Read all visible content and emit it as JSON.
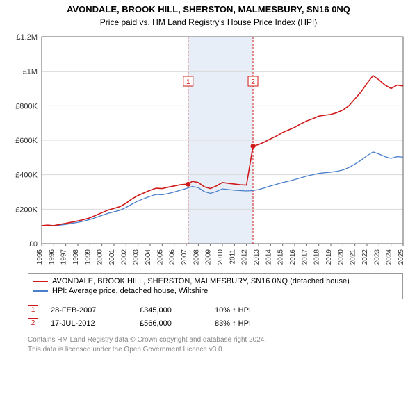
{
  "title": "AVONDALE, BROOK HILL, SHERSTON, MALMESBURY, SN16 0NQ",
  "subtitle": "Price paid vs. HM Land Registry's House Price Index (HPI)",
  "chart": {
    "type": "line",
    "background_color": "#ffffff",
    "grid_color": "#d9d9d9",
    "axis_color": "#666666",
    "shade_color": "#e8eef7",
    "marker_line_color": "#d11919",
    "xlim": [
      1995,
      2025
    ],
    "ylim": [
      0,
      1200000
    ],
    "ytick_step": 200000,
    "yticks": [
      "£0",
      "£200K",
      "£400K",
      "£600K",
      "£800K",
      "£1M",
      "£1.2M"
    ],
    "xticks": [
      1995,
      1996,
      1997,
      1998,
      1999,
      2000,
      2001,
      2002,
      2003,
      2004,
      2005,
      2006,
      2007,
      2008,
      2009,
      2010,
      2011,
      2012,
      2013,
      2014,
      2015,
      2016,
      2017,
      2018,
      2019,
      2020,
      2021,
      2022,
      2023,
      2024,
      2025
    ],
    "series": [
      {
        "name": "property",
        "color": "#d11919",
        "width": 1.6,
        "points": [
          [
            1995,
            105000
          ],
          [
            1995.5,
            108000
          ],
          [
            1996,
            105000
          ],
          [
            1996.5,
            112000
          ],
          [
            1997,
            118000
          ],
          [
            1997.5,
            125000
          ],
          [
            1998,
            132000
          ],
          [
            1998.5,
            140000
          ],
          [
            1999,
            150000
          ],
          [
            1999.5,
            165000
          ],
          [
            2000,
            180000
          ],
          [
            2000.5,
            195000
          ],
          [
            2001,
            205000
          ],
          [
            2001.5,
            215000
          ],
          [
            2002,
            235000
          ],
          [
            2002.5,
            260000
          ],
          [
            2003,
            280000
          ],
          [
            2003.5,
            295000
          ],
          [
            2004,
            310000
          ],
          [
            2004.5,
            322000
          ],
          [
            2005,
            320000
          ],
          [
            2005.5,
            328000
          ],
          [
            2006,
            335000
          ],
          [
            2006.5,
            342000
          ],
          [
            2007,
            345000
          ],
          [
            2007.16,
            345000
          ],
          [
            2007.5,
            362000
          ],
          [
            2008,
            355000
          ],
          [
            2008.5,
            330000
          ],
          [
            2009,
            320000
          ],
          [
            2009.5,
            335000
          ],
          [
            2010,
            355000
          ],
          [
            2010.5,
            350000
          ],
          [
            2011,
            346000
          ],
          [
            2011.5,
            342000
          ],
          [
            2012,
            340000
          ],
          [
            2012.54,
            566000
          ],
          [
            2013,
            575000
          ],
          [
            2013.5,
            590000
          ],
          [
            2014,
            608000
          ],
          [
            2014.5,
            625000
          ],
          [
            2015,
            645000
          ],
          [
            2015.5,
            660000
          ],
          [
            2016,
            675000
          ],
          [
            2016.5,
            695000
          ],
          [
            2017,
            712000
          ],
          [
            2017.5,
            725000
          ],
          [
            2018,
            740000
          ],
          [
            2018.5,
            745000
          ],
          [
            2019,
            750000
          ],
          [
            2019.5,
            760000
          ],
          [
            2020,
            775000
          ],
          [
            2020.5,
            800000
          ],
          [
            2021,
            840000
          ],
          [
            2021.5,
            880000
          ],
          [
            2022,
            930000
          ],
          [
            2022.5,
            975000
          ],
          [
            2023,
            950000
          ],
          [
            2023.5,
            920000
          ],
          [
            2024,
            900000
          ],
          [
            2024.5,
            920000
          ],
          [
            2025,
            915000
          ]
        ]
      },
      {
        "name": "hpi",
        "color": "#4a7fcb",
        "width": 1.3,
        "points": [
          [
            1995,
            105000
          ],
          [
            1995.5,
            106000
          ],
          [
            1996,
            104000
          ],
          [
            1996.5,
            108000
          ],
          [
            1997,
            112000
          ],
          [
            1997.5,
            118000
          ],
          [
            1998,
            124000
          ],
          [
            1998.5,
            131000
          ],
          [
            1999,
            140000
          ],
          [
            1999.5,
            152000
          ],
          [
            2000,
            164000
          ],
          [
            2000.5,
            176000
          ],
          [
            2001,
            185000
          ],
          [
            2001.5,
            194000
          ],
          [
            2002,
            210000
          ],
          [
            2002.5,
            230000
          ],
          [
            2003,
            248000
          ],
          [
            2003.5,
            262000
          ],
          [
            2004,
            275000
          ],
          [
            2004.5,
            286000
          ],
          [
            2005,
            284000
          ],
          [
            2005.5,
            291000
          ],
          [
            2006,
            300000
          ],
          [
            2006.5,
            310000
          ],
          [
            2007,
            320000
          ],
          [
            2007.5,
            332000
          ],
          [
            2008,
            325000
          ],
          [
            2008.5,
            302000
          ],
          [
            2009,
            292000
          ],
          [
            2009.5,
            303000
          ],
          [
            2010,
            318000
          ],
          [
            2010.5,
            314000
          ],
          [
            2011,
            310000
          ],
          [
            2011.5,
            308000
          ],
          [
            2012,
            306000
          ],
          [
            2012.5,
            308000
          ],
          [
            2013,
            314000
          ],
          [
            2013.5,
            324000
          ],
          [
            2014,
            335000
          ],
          [
            2014.5,
            345000
          ],
          [
            2015,
            355000
          ],
          [
            2015.5,
            363000
          ],
          [
            2016,
            372000
          ],
          [
            2016.5,
            382000
          ],
          [
            2017,
            392000
          ],
          [
            2017.5,
            400000
          ],
          [
            2018,
            408000
          ],
          [
            2018.5,
            412000
          ],
          [
            2019,
            415000
          ],
          [
            2019.5,
            420000
          ],
          [
            2020,
            428000
          ],
          [
            2020.5,
            442000
          ],
          [
            2021,
            462000
          ],
          [
            2021.5,
            484000
          ],
          [
            2022,
            510000
          ],
          [
            2022.5,
            532000
          ],
          [
            2023,
            520000
          ],
          [
            2023.5,
            505000
          ],
          [
            2024,
            495000
          ],
          [
            2024.5,
            505000
          ],
          [
            2025,
            502000
          ]
        ]
      }
    ],
    "sale_markers": [
      {
        "n": 1,
        "x": 2007.16,
        "y": 345000
      },
      {
        "n": 2,
        "x": 2012.54,
        "y": 566000
      }
    ],
    "shade_span": [
      2007.16,
      2012.54
    ]
  },
  "legend": {
    "property": "AVONDALE, BROOK HILL, SHERSTON, MALMESBURY, SN16 0NQ (detached house)",
    "hpi": "HPI: Average price, detached house, Wiltshire"
  },
  "sales": [
    {
      "n": "1",
      "date": "28-FEB-2007",
      "price": "£345,000",
      "pct": "10% ↑ HPI"
    },
    {
      "n": "2",
      "date": "17-JUL-2012",
      "price": "£566,000",
      "pct": "83% ↑ HPI"
    }
  ],
  "footer": {
    "line1": "Contains HM Land Registry data © Crown copyright and database right 2024.",
    "line2": "This data is licensed under the Open Government Licence v3.0."
  },
  "colors": {
    "marker_border": "#d11919",
    "marker_text": "#d11919"
  }
}
